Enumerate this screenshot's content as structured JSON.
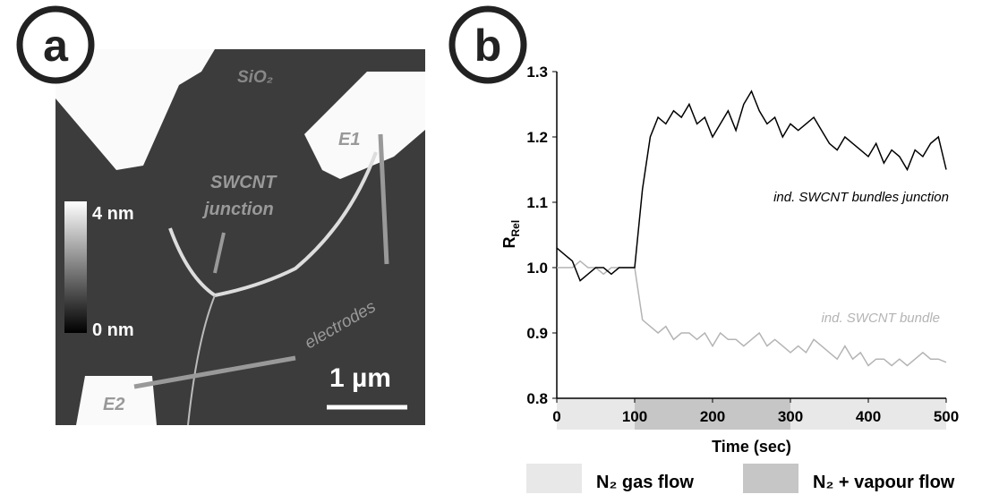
{
  "panel_a": {
    "label": "a",
    "texts": {
      "sio2": "SiO₂",
      "e1": "E1",
      "junction_1": "SWCNT",
      "junction_2": "junction",
      "electrodes": "electrodes",
      "e2": "E2",
      "scale": "1 µm",
      "cbar_top": "4 nm",
      "cbar_bottom": "0 nm"
    }
  },
  "chart_data": {
    "type": "line",
    "panel_label": "b",
    "x_label": "Time (sec)",
    "y_label": "R",
    "y_label_sub": "Rel",
    "x": [
      0,
      10,
      20,
      30,
      40,
      50,
      60,
      70,
      80,
      90,
      100,
      110,
      120,
      130,
      140,
      150,
      160,
      170,
      180,
      190,
      200,
      210,
      220,
      230,
      240,
      250,
      260,
      270,
      280,
      290,
      300,
      310,
      320,
      330,
      340,
      350,
      360,
      370,
      380,
      390,
      400,
      410,
      420,
      430,
      440,
      450,
      460,
      470,
      480,
      490,
      500
    ],
    "series": [
      {
        "name": "ind. SWCNT bundles junction",
        "color": "#000000",
        "values": [
          1.03,
          1.02,
          1.01,
          0.98,
          0.99,
          1.0,
          1.0,
          0.99,
          1.0,
          1.0,
          1.0,
          1.12,
          1.2,
          1.23,
          1.22,
          1.24,
          1.23,
          1.25,
          1.22,
          1.23,
          1.2,
          1.22,
          1.24,
          1.21,
          1.25,
          1.27,
          1.24,
          1.22,
          1.23,
          1.2,
          1.22,
          1.21,
          1.22,
          1.23,
          1.21,
          1.19,
          1.18,
          1.2,
          1.19,
          1.18,
          1.17,
          1.19,
          1.16,
          1.18,
          1.17,
          1.15,
          1.18,
          1.17,
          1.19,
          1.2,
          1.15
        ]
      },
      {
        "name": "ind. SWCNT bundle",
        "color": "#b4b4b4",
        "values": [
          1.0,
          1.0,
          1.0,
          1.01,
          1.0,
          1.0,
          0.99,
          1.0,
          1.0,
          1.0,
          1.0,
          0.92,
          0.91,
          0.9,
          0.91,
          0.89,
          0.9,
          0.9,
          0.89,
          0.9,
          0.88,
          0.9,
          0.89,
          0.89,
          0.88,
          0.89,
          0.9,
          0.88,
          0.89,
          0.88,
          0.87,
          0.88,
          0.87,
          0.89,
          0.88,
          0.87,
          0.86,
          0.88,
          0.86,
          0.87,
          0.85,
          0.86,
          0.86,
          0.85,
          0.86,
          0.85,
          0.86,
          0.87,
          0.86,
          0.86,
          0.855
        ]
      }
    ],
    "xlim": [
      0,
      500
    ],
    "xticks": [
      0,
      100,
      200,
      300,
      400,
      500
    ],
    "ylim": [
      0.8,
      1.3
    ],
    "yticks": [
      0.8,
      0.9,
      {
        "value": 1,
        "label": "1.0"
      },
      1.1,
      1.2,
      1.3
    ],
    "bands": [
      {
        "start": 0,
        "end": 100,
        "color": "#e8e8e8"
      },
      {
        "start": 100,
        "end": 300,
        "color": "#c6c6c6"
      },
      {
        "start": 300,
        "end": 500,
        "color": "#e8e8e8"
      }
    ],
    "legend": [
      {
        "label": "N₂ gas flow",
        "color": "#e8e8e8"
      },
      {
        "label": "N₂ + vapour flow",
        "color": "#c6c6c6"
      }
    ]
  }
}
